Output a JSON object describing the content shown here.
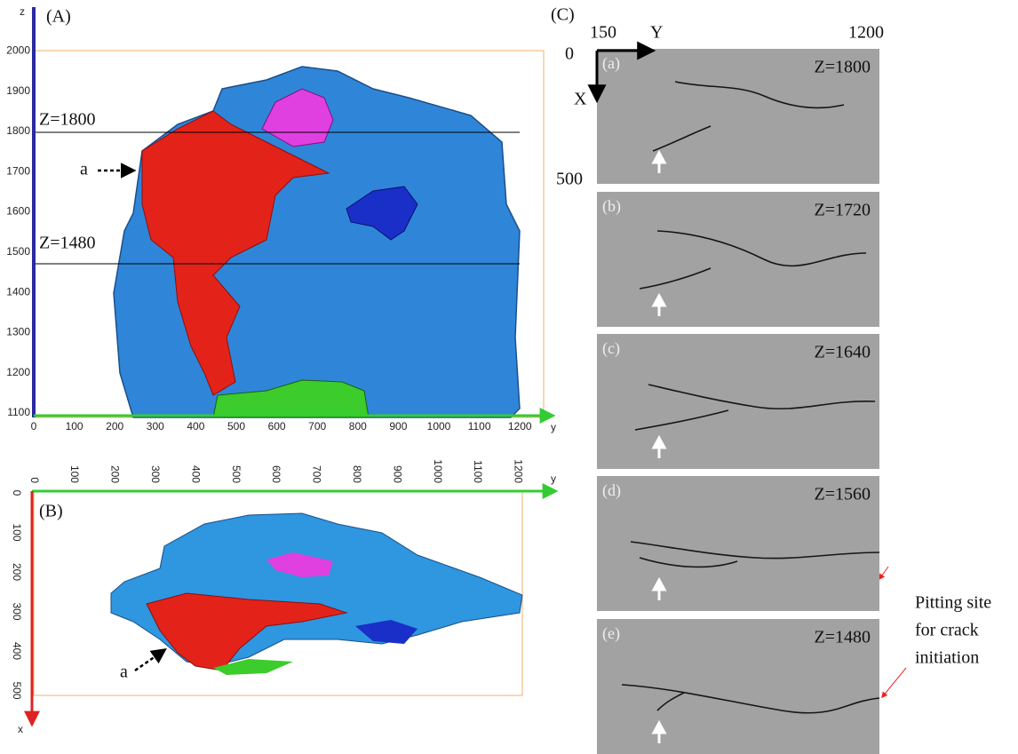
{
  "panel_a": {
    "label": "(A)",
    "z_axis_label": "z",
    "z_ticks": [
      1100,
      1200,
      1300,
      1400,
      1500,
      1600,
      1700,
      1800,
      1900,
      2000
    ],
    "y_axis_label": "y",
    "y_ticks": [
      0,
      100,
      200,
      300,
      400,
      500,
      600,
      700,
      800,
      900,
      1000,
      1100,
      1200
    ],
    "z_lines": [
      "Z=1800",
      "Z=1480"
    ],
    "annotation": "a"
  },
  "panel_b": {
    "label": "(B)",
    "y_axis_label": "y",
    "y_ticks": [
      0,
      100,
      200,
      300,
      400,
      500,
      600,
      700,
      800,
      900,
      1000,
      1100,
      1200
    ],
    "x_axis_label": "x",
    "x_ticks": [
      0,
      100,
      200,
      300,
      400,
      500
    ],
    "annotation": "a"
  },
  "panel_c": {
    "label": "(C)",
    "y_axis_label": "Y",
    "y_start": 150,
    "y_end": 1200,
    "x_axis_label": "X",
    "x_start": 0,
    "x_end": 500,
    "slices": [
      {
        "label": "(a)",
        "z": "Z=1800"
      },
      {
        "label": "(b)",
        "z": "Z=1720"
      },
      {
        "label": "(c)",
        "z": "Z=1640"
      },
      {
        "label": "(d)",
        "z": "Z=1560"
      },
      {
        "label": "(e)",
        "z": "Z=1480"
      }
    ],
    "annotation": [
      "Pitting site",
      "for crack",
      "initiation"
    ]
  }
}
